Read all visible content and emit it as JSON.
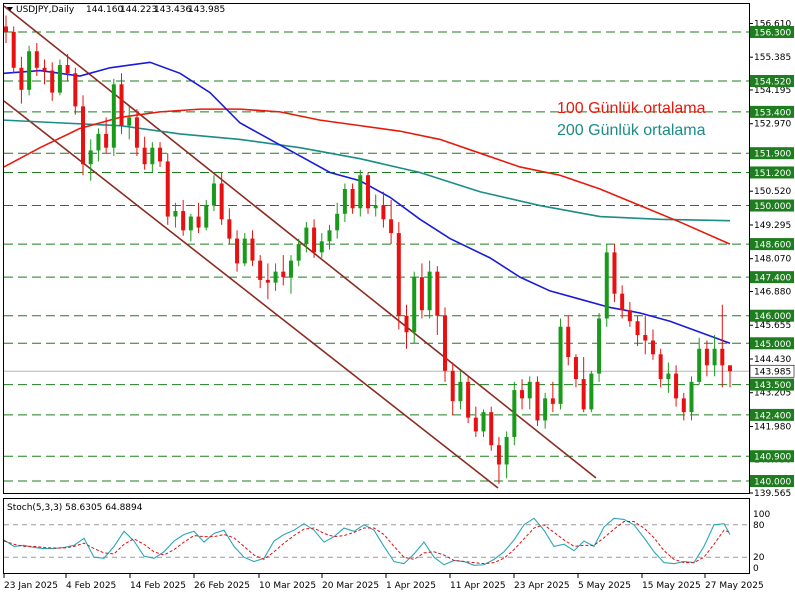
{
  "chart_data": {
    "type": "candlestick",
    "symbol_header": "USDJPY,Daily",
    "ohlc_header": [
      "144.160",
      "144.223",
      "143.436",
      "143.985"
    ],
    "legend": [
      {
        "label": "100 Günlük ortalama",
        "color": "#e8190c"
      },
      {
        "label": "200 Günlük ortalama",
        "color": "#1b8c86"
      }
    ],
    "y_ticks": [
      "156.610",
      "155.385",
      "154.195",
      "152.970",
      "151.190",
      "150.520",
      "149.295",
      "148.070",
      "146.880",
      "145.655",
      "144.430",
      "143.205",
      "141.980",
      "140.790",
      "139.565"
    ],
    "levels": [
      {
        "label": "156.300",
        "value": 156.3
      },
      {
        "label": "154.520",
        "value": 154.52
      },
      {
        "label": "153.400",
        "value": 153.4
      },
      {
        "label": "151.900",
        "value": 151.9
      },
      {
        "label": "151.200",
        "value": 151.2
      },
      {
        "label": "150.000",
        "value": 150.0
      },
      {
        "label": "148.600",
        "value": 148.6
      },
      {
        "label": "147.400",
        "value": 147.4
      },
      {
        "label": "146.000",
        "value": 146.0
      },
      {
        "label": "145.000",
        "value": 145.0
      },
      {
        "label": "143.500",
        "value": 143.5
      },
      {
        "label": "142.400",
        "value": 142.4
      },
      {
        "label": "140.900",
        "value": 140.9
      },
      {
        "label": "140.000",
        "value": 140.0
      }
    ],
    "current_price": {
      "label": "143.985",
      "value": 143.985
    },
    "x_labels": [
      "23 Jan 2025",
      "4 Feb 2025",
      "14 Feb 2025",
      "26 Feb 2025",
      "10 Mar 2025",
      "20 Mar 2025",
      "1 Apr 2025",
      "11 Apr 2025",
      "23 Apr 2025",
      "5 May 2025",
      "15 May 2025",
      "27 May 2025"
    ],
    "candles": [
      [
        156.5,
        156.9,
        155.9,
        156.3
      ],
      [
        156.3,
        156.5,
        154.8,
        155.0
      ],
      [
        155.0,
        155.4,
        153.7,
        154.2
      ],
      [
        154.2,
        155.8,
        154.0,
        155.6
      ],
      [
        155.6,
        155.9,
        154.7,
        155.0
      ],
      [
        155.0,
        155.3,
        154.4,
        154.9
      ],
      [
        154.9,
        155.2,
        153.8,
        154.1
      ],
      [
        154.1,
        155.3,
        154.0,
        155.1
      ],
      [
        155.1,
        155.5,
        154.5,
        154.8
      ],
      [
        154.8,
        155.0,
        153.3,
        153.6
      ],
      [
        153.6,
        154.0,
        151.1,
        151.5
      ],
      [
        151.5,
        152.4,
        150.9,
        152.0
      ],
      [
        152.0,
        152.8,
        151.6,
        152.6
      ],
      [
        152.6,
        153.2,
        151.9,
        152.1
      ],
      [
        152.1,
        154.6,
        151.8,
        154.4
      ],
      [
        154.4,
        154.8,
        152.6,
        152.9
      ],
      [
        152.9,
        153.6,
        152.4,
        153.2
      ],
      [
        153.2,
        153.5,
        151.8,
        152.1
      ],
      [
        152.1,
        152.5,
        151.3,
        151.5
      ],
      [
        151.5,
        152.3,
        151.2,
        152.1
      ],
      [
        152.1,
        152.3,
        151.4,
        151.6
      ],
      [
        151.6,
        151.9,
        149.3,
        149.6
      ],
      [
        149.6,
        150.1,
        149.2,
        149.8
      ],
      [
        149.8,
        150.2,
        148.9,
        149.1
      ],
      [
        149.1,
        149.7,
        148.7,
        149.6
      ],
      [
        149.6,
        150.1,
        149.0,
        149.2
      ],
      [
        149.2,
        150.2,
        149.1,
        150.0
      ],
      [
        150.0,
        151.1,
        149.8,
        150.8
      ],
      [
        150.8,
        151.2,
        149.3,
        149.5
      ],
      [
        149.5,
        149.9,
        148.6,
        148.8
      ],
      [
        148.8,
        149.1,
        147.6,
        147.9
      ],
      [
        147.9,
        149.0,
        147.8,
        148.8
      ],
      [
        148.8,
        149.1,
        147.8,
        148.0
      ],
      [
        148.0,
        148.2,
        147.0,
        147.3
      ],
      [
        147.3,
        147.9,
        146.6,
        147.2
      ],
      [
        147.2,
        147.9,
        146.9,
        147.6
      ],
      [
        147.6,
        148.2,
        147.1,
        147.4
      ],
      [
        147.4,
        148.2,
        146.8,
        148.0
      ],
      [
        148.0,
        148.8,
        147.8,
        148.6
      ],
      [
        148.6,
        149.4,
        148.3,
        149.2
      ],
      [
        149.2,
        149.5,
        148.1,
        148.3
      ],
      [
        148.3,
        149.0,
        148.1,
        148.7
      ],
      [
        148.7,
        149.3,
        148.4,
        149.1
      ],
      [
        149.1,
        150.1,
        148.8,
        149.7
      ],
      [
        149.7,
        150.8,
        149.4,
        150.6
      ],
      [
        150.6,
        150.8,
        149.7,
        149.9
      ],
      [
        149.9,
        151.3,
        149.6,
        151.1
      ],
      [
        151.1,
        151.2,
        149.7,
        149.9
      ],
      [
        149.9,
        150.4,
        149.6,
        150.0
      ],
      [
        150.0,
        150.5,
        149.2,
        149.5
      ],
      [
        149.5,
        150.2,
        148.6,
        149.0
      ],
      [
        149.0,
        149.4,
        145.5,
        146.0
      ],
      [
        146.0,
        146.4,
        144.8,
        145.4
      ],
      [
        145.4,
        147.6,
        145.0,
        147.4
      ],
      [
        147.4,
        147.9,
        145.9,
        146.2
      ],
      [
        146.2,
        148.0,
        145.9,
        147.6
      ],
      [
        147.6,
        147.8,
        145.3,
        146.0
      ],
      [
        146.0,
        146.3,
        143.6,
        144.0
      ],
      [
        144.0,
        144.3,
        142.4,
        142.9
      ],
      [
        142.9,
        144.0,
        142.6,
        143.6
      ],
      [
        143.6,
        143.8,
        142.1,
        142.3
      ],
      [
        142.3,
        142.7,
        141.6,
        141.8
      ],
      [
        141.8,
        142.6,
        141.6,
        142.5
      ],
      [
        142.5,
        142.7,
        141.1,
        141.3
      ],
      [
        141.3,
        141.6,
        139.9,
        140.6
      ],
      [
        140.6,
        141.8,
        140.1,
        141.6
      ],
      [
        141.6,
        143.6,
        141.3,
        143.3
      ],
      [
        143.3,
        143.7,
        142.6,
        143.0
      ],
      [
        143.0,
        143.8,
        142.6,
        143.6
      ],
      [
        143.6,
        143.8,
        142.0,
        142.2
      ],
      [
        142.2,
        143.2,
        141.9,
        143.0
      ],
      [
        143.0,
        143.6,
        142.5,
        142.8
      ],
      [
        142.8,
        145.9,
        142.6,
        145.6
      ],
      [
        145.6,
        146.0,
        144.2,
        144.5
      ],
      [
        144.5,
        144.6,
        143.4,
        143.7
      ],
      [
        143.7,
        144.5,
        142.5,
        142.6
      ],
      [
        142.6,
        144.0,
        142.5,
        143.9
      ],
      [
        143.9,
        146.1,
        143.6,
        145.9
      ],
      [
        145.9,
        148.6,
        145.6,
        148.3
      ],
      [
        148.3,
        148.6,
        146.5,
        146.8
      ],
      [
        146.8,
        147.1,
        145.9,
        146.2
      ],
      [
        146.2,
        146.5,
        145.6,
        145.8
      ],
      [
        145.8,
        146.0,
        144.9,
        145.3
      ],
      [
        145.3,
        146.0,
        144.6,
        145.1
      ],
      [
        145.1,
        145.5,
        144.4,
        144.6
      ],
      [
        144.6,
        144.8,
        143.4,
        143.7
      ],
      [
        143.7,
        144.3,
        143.2,
        143.9
      ],
      [
        143.9,
        144.2,
        142.7,
        143.0
      ],
      [
        143.0,
        143.2,
        142.2,
        142.5
      ],
      [
        142.5,
        143.8,
        142.2,
        143.6
      ],
      [
        143.6,
        145.2,
        143.5,
        144.8
      ],
      [
        144.8,
        145.1,
        143.8,
        144.2
      ],
      [
        144.2,
        145.3,
        143.8,
        144.8
      ],
      [
        144.8,
        146.4,
        143.4,
        144.2
      ],
      [
        144.2,
        144.2,
        143.4,
        143.985
      ]
    ],
    "ma_blue": [
      [
        4,
        154.8
      ],
      [
        40,
        154.9
      ],
      [
        80,
        154.7
      ],
      [
        110,
        155.0
      ],
      [
        150,
        155.2
      ],
      [
        180,
        154.8
      ],
      [
        210,
        154.1
      ],
      [
        240,
        153.0
      ],
      [
        270,
        152.4
      ],
      [
        300,
        151.8
      ],
      [
        330,
        151.2
      ],
      [
        360,
        150.9
      ],
      [
        390,
        150.3
      ],
      [
        420,
        149.5
      ],
      [
        450,
        148.8
      ],
      [
        490,
        148.1
      ],
      [
        520,
        147.4
      ],
      [
        550,
        146.9
      ],
      [
        580,
        146.6
      ],
      [
        610,
        146.3
      ],
      [
        640,
        146.1
      ],
      [
        670,
        145.8
      ],
      [
        700,
        145.4
      ],
      [
        730,
        145.0
      ]
    ],
    "ma_red": [
      [
        4,
        151.4
      ],
      [
        40,
        152.1
      ],
      [
        80,
        152.8
      ],
      [
        120,
        153.2
      ],
      [
        160,
        153.4
      ],
      [
        200,
        153.5
      ],
      [
        240,
        153.5
      ],
      [
        280,
        153.4
      ],
      [
        320,
        153.1
      ],
      [
        360,
        152.9
      ],
      [
        400,
        152.7
      ],
      [
        440,
        152.4
      ],
      [
        480,
        151.9
      ],
      [
        520,
        151.4
      ],
      [
        560,
        151.1
      ],
      [
        600,
        150.6
      ],
      [
        640,
        150.0
      ],
      [
        680,
        149.4
      ],
      [
        730,
        148.6
      ]
    ],
    "ma_teal": [
      [
        4,
        153.1
      ],
      [
        60,
        153.0
      ],
      [
        120,
        152.9
      ],
      [
        180,
        152.6
      ],
      [
        240,
        152.4
      ],
      [
        300,
        152.1
      ],
      [
        360,
        151.7
      ],
      [
        420,
        151.2
      ],
      [
        480,
        150.5
      ],
      [
        540,
        150.0
      ],
      [
        600,
        149.6
      ],
      [
        660,
        149.5
      ],
      [
        730,
        149.45
      ]
    ],
    "stochastic": {
      "label": "Stoch(5,3,3) 58.6305 64.8894",
      "y_ticks": [
        "100",
        "80",
        "20",
        "0"
      ],
      "levels": [
        80,
        20
      ],
      "k": [
        [
          4,
          52
        ],
        [
          14,
          40
        ],
        [
          24,
          42
        ],
        [
          34,
          38
        ],
        [
          44,
          36
        ],
        [
          54,
          36
        ],
        [
          64,
          38
        ],
        [
          74,
          42
        ],
        [
          84,
          55
        ],
        [
          94,
          20
        ],
        [
          104,
          18
        ],
        [
          114,
          40
        ],
        [
          124,
          68
        ],
        [
          134,
          50
        ],
        [
          144,
          22
        ],
        [
          154,
          18
        ],
        [
          164,
          30
        ],
        [
          174,
          50
        ],
        [
          184,
          62
        ],
        [
          194,
          68
        ],
        [
          204,
          48
        ],
        [
          214,
          64
        ],
        [
          224,
          70
        ],
        [
          234,
          40
        ],
        [
          244,
          20
        ],
        [
          254,
          12
        ],
        [
          264,
          18
        ],
        [
          274,
          50
        ],
        [
          284,
          62
        ],
        [
          294,
          70
        ],
        [
          304,
          82
        ],
        [
          314,
          70
        ],
        [
          324,
          48
        ],
        [
          334,
          58
        ],
        [
          344,
          74
        ],
        [
          354,
          68
        ],
        [
          364,
          80
        ],
        [
          374,
          70
        ],
        [
          384,
          40
        ],
        [
          394,
          12
        ],
        [
          404,
          8
        ],
        [
          414,
          26
        ],
        [
          424,
          48
        ],
        [
          434,
          20
        ],
        [
          444,
          6
        ],
        [
          454,
          14
        ],
        [
          464,
          12
        ],
        [
          474,
          5
        ],
        [
          484,
          6
        ],
        [
          494,
          16
        ],
        [
          504,
          30
        ],
        [
          514,
          52
        ],
        [
          524,
          80
        ],
        [
          534,
          92
        ],
        [
          544,
          70
        ],
        [
          554,
          40
        ],
        [
          564,
          44
        ],
        [
          574,
          32
        ],
        [
          584,
          50
        ],
        [
          594,
          40
        ],
        [
          604,
          76
        ],
        [
          614,
          92
        ],
        [
          624,
          90
        ],
        [
          634,
          80
        ],
        [
          644,
          56
        ],
        [
          654,
          30
        ],
        [
          664,
          10
        ],
        [
          674,
          8
        ],
        [
          684,
          12
        ],
        [
          694,
          10
        ],
        [
          704,
          40
        ],
        [
          714,
          80
        ],
        [
          724,
          82
        ],
        [
          730,
          62
        ]
      ],
      "d": [
        [
          4,
          50
        ],
        [
          14,
          44
        ],
        [
          24,
          40
        ],
        [
          34,
          40
        ],
        [
          44,
          38
        ],
        [
          54,
          37
        ],
        [
          64,
          37
        ],
        [
          74,
          40
        ],
        [
          84,
          46
        ],
        [
          94,
          36
        ],
        [
          104,
          28
        ],
        [
          114,
          26
        ],
        [
          124,
          44
        ],
        [
          134,
          54
        ],
        [
          144,
          44
        ],
        [
          154,
          30
        ],
        [
          164,
          24
        ],
        [
          174,
          34
        ],
        [
          184,
          48
        ],
        [
          194,
          60
        ],
        [
          204,
          58
        ],
        [
          214,
          58
        ],
        [
          224,
          62
        ],
        [
          234,
          56
        ],
        [
          244,
          40
        ],
        [
          254,
          24
        ],
        [
          264,
          16
        ],
        [
          274,
          30
        ],
        [
          284,
          46
        ],
        [
          294,
          60
        ],
        [
          304,
          72
        ],
        [
          314,
          74
        ],
        [
          324,
          64
        ],
        [
          334,
          58
        ],
        [
          344,
          60
        ],
        [
          354,
          66
        ],
        [
          364,
          74
        ],
        [
          374,
          74
        ],
        [
          384,
          62
        ],
        [
          394,
          40
        ],
        [
          404,
          20
        ],
        [
          414,
          16
        ],
        [
          424,
          28
        ],
        [
          434,
          30
        ],
        [
          444,
          24
        ],
        [
          454,
          14
        ],
        [
          464,
          12
        ],
        [
          474,
          10
        ],
        [
          484,
          8
        ],
        [
          494,
          10
        ],
        [
          504,
          18
        ],
        [
          514,
          34
        ],
        [
          524,
          54
        ],
        [
          534,
          74
        ],
        [
          544,
          80
        ],
        [
          554,
          66
        ],
        [
          564,
          52
        ],
        [
          574,
          40
        ],
        [
          584,
          42
        ],
        [
          594,
          42
        ],
        [
          604,
          56
        ],
        [
          614,
          72
        ],
        [
          624,
          86
        ],
        [
          634,
          86
        ],
        [
          644,
          74
        ],
        [
          654,
          56
        ],
        [
          664,
          32
        ],
        [
          674,
          16
        ],
        [
          684,
          10
        ],
        [
          694,
          10
        ],
        [
          704,
          20
        ],
        [
          714,
          44
        ],
        [
          724,
          70
        ],
        [
          730,
          66
        ]
      ]
    }
  }
}
